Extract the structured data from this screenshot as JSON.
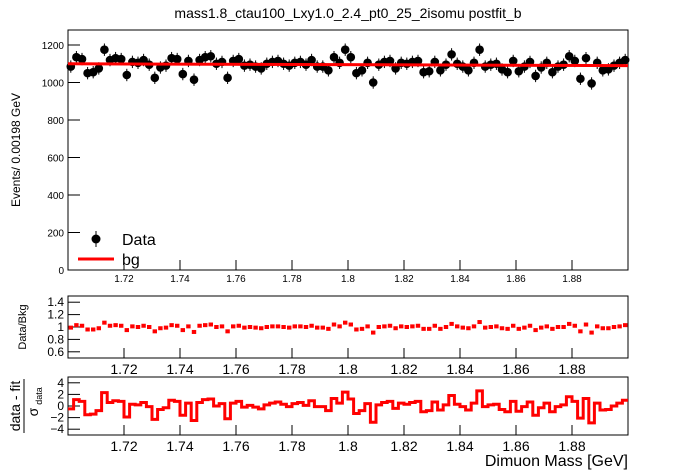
{
  "chart_data": {
    "type": "scatter",
    "title": "mass1.8_ctau100_Lxy1.0_2.4_pt0_25_2isomu   postfit_b",
    "xlabel": "Dimuon Mass [GeV]",
    "xlim": [
      1.7,
      1.9
    ],
    "x_tick_labels": [
      "1.72",
      "1.74",
      "1.76",
      "1.78",
      "1.8",
      "1.82",
      "1.84",
      "1.86",
      "1.88"
    ],
    "x_tick_values": [
      1.72,
      1.74,
      1.76,
      1.78,
      1.8,
      1.82,
      1.84,
      1.86,
      1.88
    ],
    "legend": {
      "placement": "bottom-left",
      "entries": [
        "Data",
        "bg"
      ]
    },
    "colors": {
      "data": "#000000",
      "fit": "#ff0000",
      "ratio": "#ff0000",
      "pull": "#ff0000"
    },
    "x": [
      1.701,
      1.703,
      1.705,
      1.707,
      1.709,
      1.711,
      1.713,
      1.715,
      1.717,
      1.719,
      1.721,
      1.723,
      1.725,
      1.727,
      1.729,
      1.731,
      1.733,
      1.735,
      1.737,
      1.739,
      1.741,
      1.743,
      1.745,
      1.747,
      1.749,
      1.751,
      1.753,
      1.755,
      1.757,
      1.759,
      1.761,
      1.763,
      1.765,
      1.767,
      1.769,
      1.771,
      1.773,
      1.775,
      1.777,
      1.779,
      1.781,
      1.783,
      1.785,
      1.787,
      1.789,
      1.791,
      1.793,
      1.795,
      1.797,
      1.799,
      1.801,
      1.803,
      1.805,
      1.807,
      1.809,
      1.811,
      1.813,
      1.815,
      1.817,
      1.819,
      1.821,
      1.823,
      1.825,
      1.827,
      1.829,
      1.831,
      1.833,
      1.835,
      1.837,
      1.839,
      1.841,
      1.843,
      1.845,
      1.847,
      1.849,
      1.851,
      1.853,
      1.855,
      1.857,
      1.859,
      1.861,
      1.863,
      1.865,
      1.867,
      1.869,
      1.871,
      1.873,
      1.875,
      1.877,
      1.879,
      1.881,
      1.883,
      1.885,
      1.887,
      1.889,
      1.891,
      1.893,
      1.895,
      1.897,
      1.899
    ],
    "panels": [
      {
        "name": "main",
        "ylabel": "Events/ 0.00198 GeV",
        "ylim": [
          0,
          1280
        ],
        "y_tick_labels": [
          "0",
          "200",
          "400",
          "600",
          "800",
          "1000",
          "1200"
        ],
        "y_tick_values": [
          0,
          200,
          400,
          600,
          800,
          1000,
          1200
        ],
        "series": [
          {
            "name": "Data",
            "style": "points-with-errors",
            "y": [
              1085,
              1135,
              1125,
              1050,
              1055,
              1075,
              1175,
              1120,
              1130,
              1125,
              1040,
              1110,
              1105,
              1120,
              1095,
              1025,
              1080,
              1090,
              1130,
              1125,
              1045,
              1115,
              1015,
              1120,
              1135,
              1140,
              1100,
              1110,
              1025,
              1115,
              1125,
              1090,
              1095,
              1085,
              1075,
              1100,
              1110,
              1115,
              1100,
              1090,
              1105,
              1110,
              1095,
              1120,
              1085,
              1085,
              1065,
              1135,
              1105,
              1175,
              1135,
              1050,
              1065,
              1105,
              1000,
              1095,
              1110,
              1115,
              1075,
              1105,
              1100,
              1110,
              1115,
              1055,
              1060,
              1110,
              1065,
              1095,
              1150,
              1100,
              1085,
              1065,
              1105,
              1175,
              1085,
              1095,
              1100,
              1070,
              1055,
              1115,
              1060,
              1085,
              1110,
              1035,
              1080,
              1105,
              1055,
              1085,
              1095,
              1140,
              1115,
              1020,
              1130,
              995,
              1105,
              1065,
              1070,
              1090,
              1105,
              1120
            ],
            "yerr": 33
          },
          {
            "name": "bg",
            "style": "line",
            "y_start": 1100,
            "y_end": 1090
          }
        ]
      },
      {
        "name": "ratio",
        "ylabel": "Data/Bkg",
        "ylim": [
          0.5,
          1.5
        ],
        "y_tick_labels": [
          "0.6",
          "0.8",
          "1",
          "1.2",
          "1.4"
        ],
        "y_tick_values": [
          0.6,
          0.8,
          1.0,
          1.2,
          1.4
        ],
        "y": [
          0.99,
          1.03,
          1.02,
          0.96,
          0.96,
          0.98,
          1.07,
          1.02,
          1.03,
          1.02,
          0.95,
          1.01,
          1.0,
          1.02,
          1.0,
          0.93,
          0.98,
          0.99,
          1.03,
          1.02,
          0.95,
          1.01,
          0.92,
          1.02,
          1.03,
          1.04,
          1.0,
          1.01,
          0.93,
          1.01,
          1.02,
          0.99,
          1.0,
          0.99,
          0.98,
          1.0,
          1.01,
          1.01,
          1.0,
          0.99,
          1.01,
          1.01,
          1.0,
          1.02,
          0.99,
          0.99,
          0.97,
          1.04,
          1.01,
          1.07,
          1.04,
          0.96,
          0.97,
          1.01,
          0.91,
          1.0,
          1.01,
          1.02,
          0.98,
          1.01,
          1.0,
          1.01,
          1.02,
          0.97,
          0.97,
          1.02,
          0.97,
          1.0,
          1.05,
          1.01,
          0.99,
          0.98,
          1.01,
          1.08,
          0.99,
          1.0,
          1.01,
          0.98,
          0.97,
          1.02,
          0.97,
          0.99,
          1.02,
          0.95,
          0.99,
          1.01,
          0.97,
          1.0,
          1.0,
          1.05,
          1.02,
          0.93,
          1.04,
          0.91,
          1.01,
          0.98,
          0.98,
          1.0,
          1.01,
          1.03
        ]
      },
      {
        "name": "pull",
        "ylabel": "data - fit",
        "ylabel_denominator": "σ",
        "ylabel_subscript": "data",
        "ylim": [
          -5,
          5
        ],
        "y_tick_labels": [
          "−4",
          "−2",
          "0",
          "2",
          "4"
        ],
        "y_tick_values": [
          -4,
          -2,
          0,
          2,
          4
        ],
        "style": "step",
        "y": [
          -0.5,
          1.1,
          0.8,
          -1.5,
          -1.4,
          -0.8,
          2.3,
          0.6,
          0.9,
          0.8,
          -1.9,
          0.3,
          0.2,
          0.6,
          -0.1,
          -2.3,
          -0.6,
          -0.3,
          1.0,
          0.8,
          -1.6,
          0.5,
          -2.5,
          0.6,
          1.1,
          1.2,
          0.0,
          0.4,
          -2.2,
          0.5,
          0.8,
          -0.2,
          0.1,
          -0.2,
          -0.5,
          0.2,
          0.5,
          0.7,
          0.3,
          -0.1,
          0.4,
          0.6,
          0.1,
          0.9,
          -0.1,
          -0.1,
          -0.8,
          1.3,
          0.5,
          2.4,
          1.2,
          -1.3,
          -0.8,
          0.4,
          -2.8,
          0.2,
          0.6,
          0.8,
          -0.4,
          0.5,
          0.3,
          0.6,
          0.8,
          -1.0,
          -0.8,
          0.7,
          -0.7,
          0.2,
          1.8,
          0.3,
          -0.1,
          -0.7,
          0.5,
          2.6,
          -0.1,
          0.2,
          0.3,
          -0.6,
          -1.0,
          0.8,
          -0.9,
          -0.1,
          0.7,
          -1.6,
          -0.3,
          0.5,
          -1.0,
          -0.1,
          0.2,
          1.6,
          0.8,
          -2.1,
          1.3,
          -2.9,
          0.5,
          -0.7,
          -0.6,
          0.0,
          0.5,
          1.0
        ]
      }
    ]
  }
}
